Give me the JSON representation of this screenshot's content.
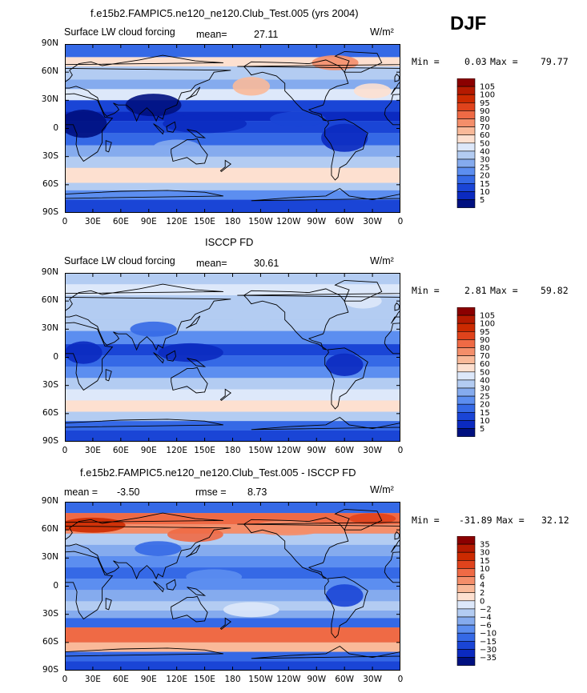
{
  "season": "DJF",
  "units": "W/m²",
  "x_ticks": [
    "0",
    "30E",
    "60E",
    "90E",
    "120E",
    "150E",
    "180",
    "150W",
    "120W",
    "90W",
    "60W",
    "30W",
    "0"
  ],
  "y_ticks": [
    "90N",
    "60N",
    "30N",
    "0",
    "30S",
    "60S",
    "90S"
  ],
  "chart_data": [
    {
      "type": "heatmap",
      "title": "f.e15b2.FAMPIC5.ne120_ne120.Club_Test.005 (yrs 2004)",
      "variable": "Surface LW cloud forcing",
      "mean_label": "mean=",
      "mean_value": "27.11",
      "min_label": "Min =",
      "min_value": "0.03",
      "max_label": "Max =",
      "max_value": "79.77",
      "units": "W/m²",
      "colorbar_levels": [
        "105",
        "100",
        "95",
        "90",
        "80",
        "70",
        "60",
        "50",
        "40",
        "30",
        "25",
        "20",
        "15",
        "10",
        "5"
      ],
      "colors": [
        "#8b0000",
        "#b51a00",
        "#cc2a00",
        "#e0431c",
        "#ef6a45",
        "#f48e6a",
        "#f9b999",
        "#fde0d0",
        "#dde8fa",
        "#b3ccf2",
        "#85abee",
        "#5c8ef0",
        "#3569e6",
        "#1a45d6",
        "#0b2ac0",
        "#001080"
      ]
    },
    {
      "type": "heatmap",
      "title": "ISCCP FD",
      "variable": "Surface LW cloud forcing",
      "mean_label": "mean=",
      "mean_value": "30.61",
      "min_label": "Min =",
      "min_value": "2.81",
      "max_label": "Max =",
      "max_value": "59.82",
      "units": "W/m²",
      "colorbar_levels": [
        "105",
        "100",
        "95",
        "90",
        "80",
        "70",
        "60",
        "50",
        "40",
        "30",
        "25",
        "20",
        "15",
        "10",
        "5"
      ],
      "colors": [
        "#8b0000",
        "#b51a00",
        "#cc2a00",
        "#e0431c",
        "#ef6a45",
        "#f48e6a",
        "#f9b999",
        "#fde0d0",
        "#dde8fa",
        "#b3ccf2",
        "#85abee",
        "#5c8ef0",
        "#3569e6",
        "#1a45d6",
        "#0b2ac0",
        "#001080"
      ]
    },
    {
      "type": "heatmap",
      "title": "f.e15b2.FAMPIC5.ne120_ne120.Club_Test.005 - ISCCP FD",
      "mean_label": "mean =",
      "mean_value": "-3.50",
      "rmse_label": "rmse =",
      "rmse_value": "8.73",
      "min_label": "Min =",
      "min_value": "-31.89",
      "max_label": "Max =",
      "max_value": "32.12",
      "units": "W/m²",
      "colorbar_levels": [
        "35",
        "30",
        "15",
        "10",
        "6",
        "4",
        "2",
        "0",
        "-2",
        "-4",
        "-6",
        "-10",
        "-15",
        "-30",
        "-35"
      ],
      "colors": [
        "#8b0000",
        "#b51a00",
        "#cc2a00",
        "#e0431c",
        "#ef6a45",
        "#f48e6a",
        "#f9b999",
        "#fde0d0",
        "#dde8fa",
        "#b3ccf2",
        "#85abee",
        "#5c8ef0",
        "#3569e6",
        "#1a45d6",
        "#0b2ac0",
        "#001080"
      ]
    }
  ]
}
